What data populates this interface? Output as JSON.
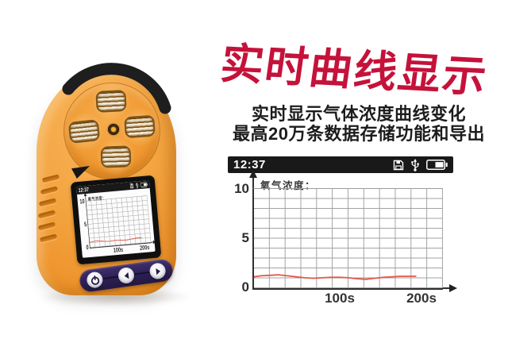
{
  "banner": {
    "background": "#ffffff"
  },
  "headline": {
    "title": "实时曲线显示",
    "title_color": "#c5123a",
    "subtitle1": "实时显示气体浓度曲线变化",
    "subtitle2": "最高20万条数据存储功能和导出",
    "text_color": "#1c1c1c"
  },
  "screen": {
    "time": "12:37",
    "statusbar_bg": "#191919",
    "status_icons": [
      "save-icon",
      "usb-icon",
      "battery-icon"
    ],
    "battery_fill_percent": 50
  },
  "chart_data": {
    "type": "line",
    "title": "氧气浓度：",
    "xlabel": "",
    "ylabel": "",
    "ylim": [
      0,
      10
    ],
    "ytick_labels": [
      "10",
      "5",
      "0"
    ],
    "xtick_labels": [
      "100s",
      "200s"
    ],
    "xtick_seconds": [
      100,
      200
    ],
    "x_range_seconds": [
      0,
      216
    ],
    "grid": true,
    "legend": "none",
    "line_color": "#e2584a",
    "series": [
      {
        "name": "氧气浓度",
        "x": [
          0,
          8,
          18,
          28,
          38,
          48,
          58,
          68,
          78,
          88,
          98,
          108,
          118,
          128,
          138,
          148,
          158,
          168,
          178,
          185
        ],
        "values": [
          1.15,
          1.25,
          1.3,
          1.35,
          1.25,
          1.15,
          1.05,
          1.0,
          1.05,
          1.1,
          1.1,
          1.05,
          0.95,
          0.9,
          1.0,
          1.1,
          1.15,
          1.2,
          1.2,
          1.2
        ]
      }
    ]
  },
  "device": {
    "body_color": "#f09c36",
    "button_panel_color": "#31235a",
    "buttons": [
      "power",
      "previous",
      "next"
    ]
  }
}
